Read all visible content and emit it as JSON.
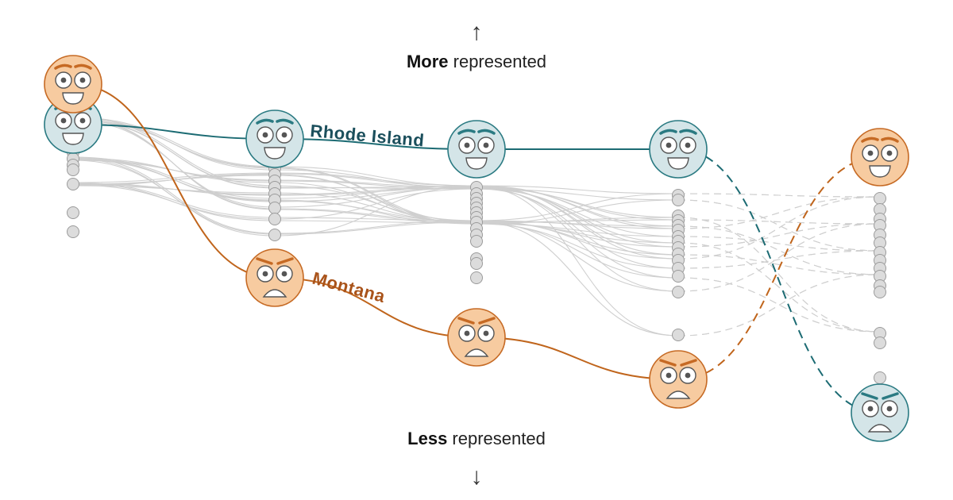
{
  "labels": {
    "top_bold": "More",
    "top_rest": " represented",
    "bottom_bold": "Less",
    "bottom_rest": " represented",
    "up_arrow": "↑",
    "down_arrow": "↓"
  },
  "highlighted": [
    {
      "name": "Rhode Island",
      "color": "#1c6b73",
      "label_color": "#1b4f5c",
      "faces": [
        "happy",
        "happy",
        "happy",
        "happy",
        "sad"
      ]
    },
    {
      "name": "Montana",
      "color": "#c0651c",
      "label_color": "#a9531a",
      "faces": [
        "happy",
        "sad",
        "sad",
        "sad",
        "happy"
      ]
    }
  ],
  "colors": {
    "teal_fill": "#d4e5e8",
    "teal_stroke": "#2a7a82",
    "orange_fill": "#f7cba0",
    "orange_stroke": "#c66a24",
    "dot_fill": "#dcdcdc",
    "dot_stroke": "#9b9b9b",
    "bg_line": "#cfcfcf"
  }
}
